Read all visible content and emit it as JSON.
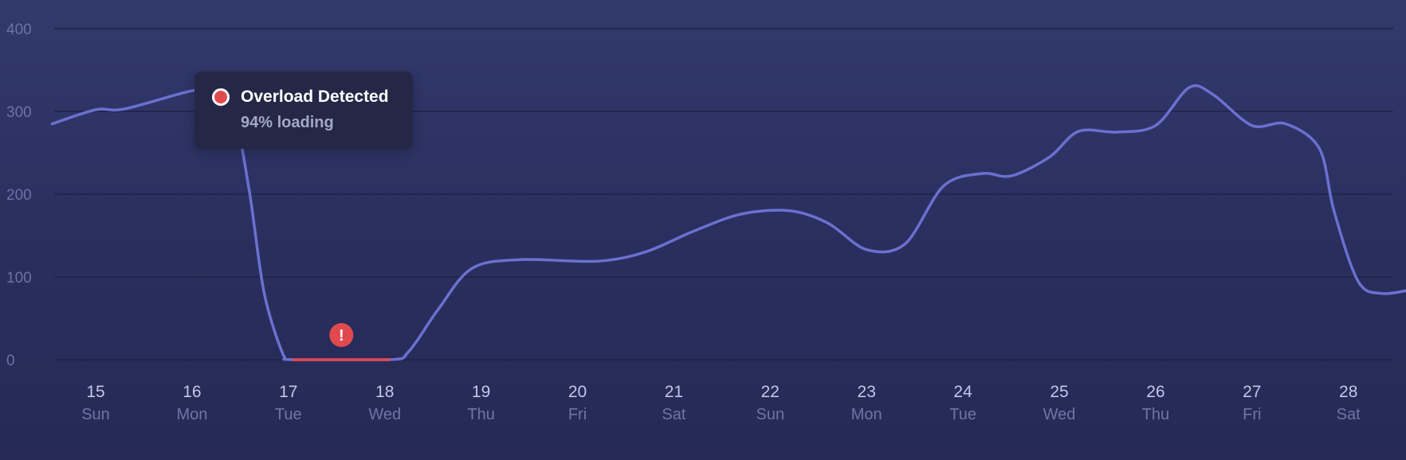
{
  "chart_data": {
    "type": "line",
    "yticks": [
      0,
      100,
      200,
      300,
      400
    ],
    "ylim": [
      0,
      400
    ],
    "grid": true,
    "categories": [
      {
        "day": "15",
        "weekday": "Sun"
      },
      {
        "day": "16",
        "weekday": "Mon"
      },
      {
        "day": "17",
        "weekday": "Tue"
      },
      {
        "day": "18",
        "weekday": "Wed"
      },
      {
        "day": "19",
        "weekday": "Thu"
      },
      {
        "day": "20",
        "weekday": "Fri"
      },
      {
        "day": "21",
        "weekday": "Sat"
      },
      {
        "day": "22",
        "weekday": "Sun"
      },
      {
        "day": "23",
        "weekday": "Mon"
      },
      {
        "day": "24",
        "weekday": "Tue"
      },
      {
        "day": "25",
        "weekday": "Wed"
      },
      {
        "day": "26",
        "weekday": "Thu"
      },
      {
        "day": "27",
        "weekday": "Fri"
      },
      {
        "day": "28",
        "weekday": "Sat"
      }
    ],
    "x_start": 14.55,
    "x_end": 28.7,
    "series": [
      {
        "points": [
          [
            14.55,
            285
          ],
          [
            15.0,
            302
          ],
          [
            15.3,
            303
          ],
          [
            16.0,
            325
          ],
          [
            16.25,
            325
          ],
          [
            16.45,
            290
          ],
          [
            16.6,
            200
          ],
          [
            16.75,
            80
          ],
          [
            16.95,
            5
          ],
          [
            17.05,
            0
          ],
          [
            18.05,
            0
          ],
          [
            18.25,
            10
          ],
          [
            18.55,
            60
          ],
          [
            18.9,
            110
          ],
          [
            19.4,
            121
          ],
          [
            20.2,
            119
          ],
          [
            20.7,
            130
          ],
          [
            21.2,
            155
          ],
          [
            21.7,
            176
          ],
          [
            22.2,
            180
          ],
          [
            22.6,
            165
          ],
          [
            23.0,
            133
          ],
          [
            23.4,
            140
          ],
          [
            23.8,
            210
          ],
          [
            24.2,
            225
          ],
          [
            24.5,
            222
          ],
          [
            24.9,
            245
          ],
          [
            25.2,
            276
          ],
          [
            25.6,
            275
          ],
          [
            26.0,
            283
          ],
          [
            26.35,
            329
          ],
          [
            26.6,
            320
          ],
          [
            27.0,
            283
          ],
          [
            27.35,
            285
          ],
          [
            27.7,
            255
          ],
          [
            27.85,
            180
          ],
          [
            28.1,
            95
          ],
          [
            28.35,
            80
          ],
          [
            28.7,
            86
          ]
        ],
        "color": "#6b70d0"
      }
    ],
    "highlight": {
      "x_from": 17.05,
      "x_to": 18.05,
      "value": 0,
      "color": "#e04a4f"
    }
  },
  "tooltip": {
    "title": "Overload Detected",
    "subtitle": "94% loading",
    "dot_color": "#e04a4f"
  },
  "alert_marker": {
    "x": 17.55,
    "symbol": "!",
    "color": "#e04a4f"
  }
}
